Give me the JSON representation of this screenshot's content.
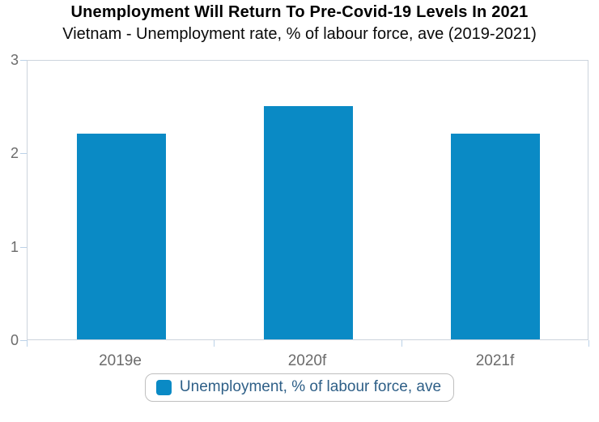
{
  "header": {
    "title": "Unemployment Will Return To Pre-Covid-19 Levels In 2021",
    "subtitle": "Vietnam - Unemployment rate, % of labour force, ave (2019-2021)"
  },
  "chart_data": {
    "type": "bar",
    "categories": [
      "2019e",
      "2020f",
      "2021f"
    ],
    "series": [
      {
        "name": "Unemployment, % of labour force, ave",
        "color": "#0a8ac5",
        "values": [
          2.2,
          2.5,
          2.2
        ]
      }
    ],
    "title": "Unemployment Will Return To Pre-Covid-19 Levels In 2021",
    "subtitle": "Vietnam - Unemployment rate, % of labour force, ave (2019-2021)",
    "xlabel": "",
    "ylabel": "",
    "ylim": [
      0,
      3
    ],
    "yticks": [
      0,
      1,
      2,
      3
    ],
    "grid": false,
    "legend_position": "bottom"
  },
  "legend": {
    "items": [
      {
        "label": "Unemployment, % of labour force, ave",
        "color": "#0a8ac5"
      }
    ]
  },
  "colors": {
    "bar": "#0a8ac5",
    "axis_frame": "#ccd4dd",
    "tick": "#bcd2e8",
    "axis_label": "#6b6b6b",
    "legend_text": "#2e5f87",
    "legend_border": "#bfbfbf",
    "title_text": "#000000"
  }
}
